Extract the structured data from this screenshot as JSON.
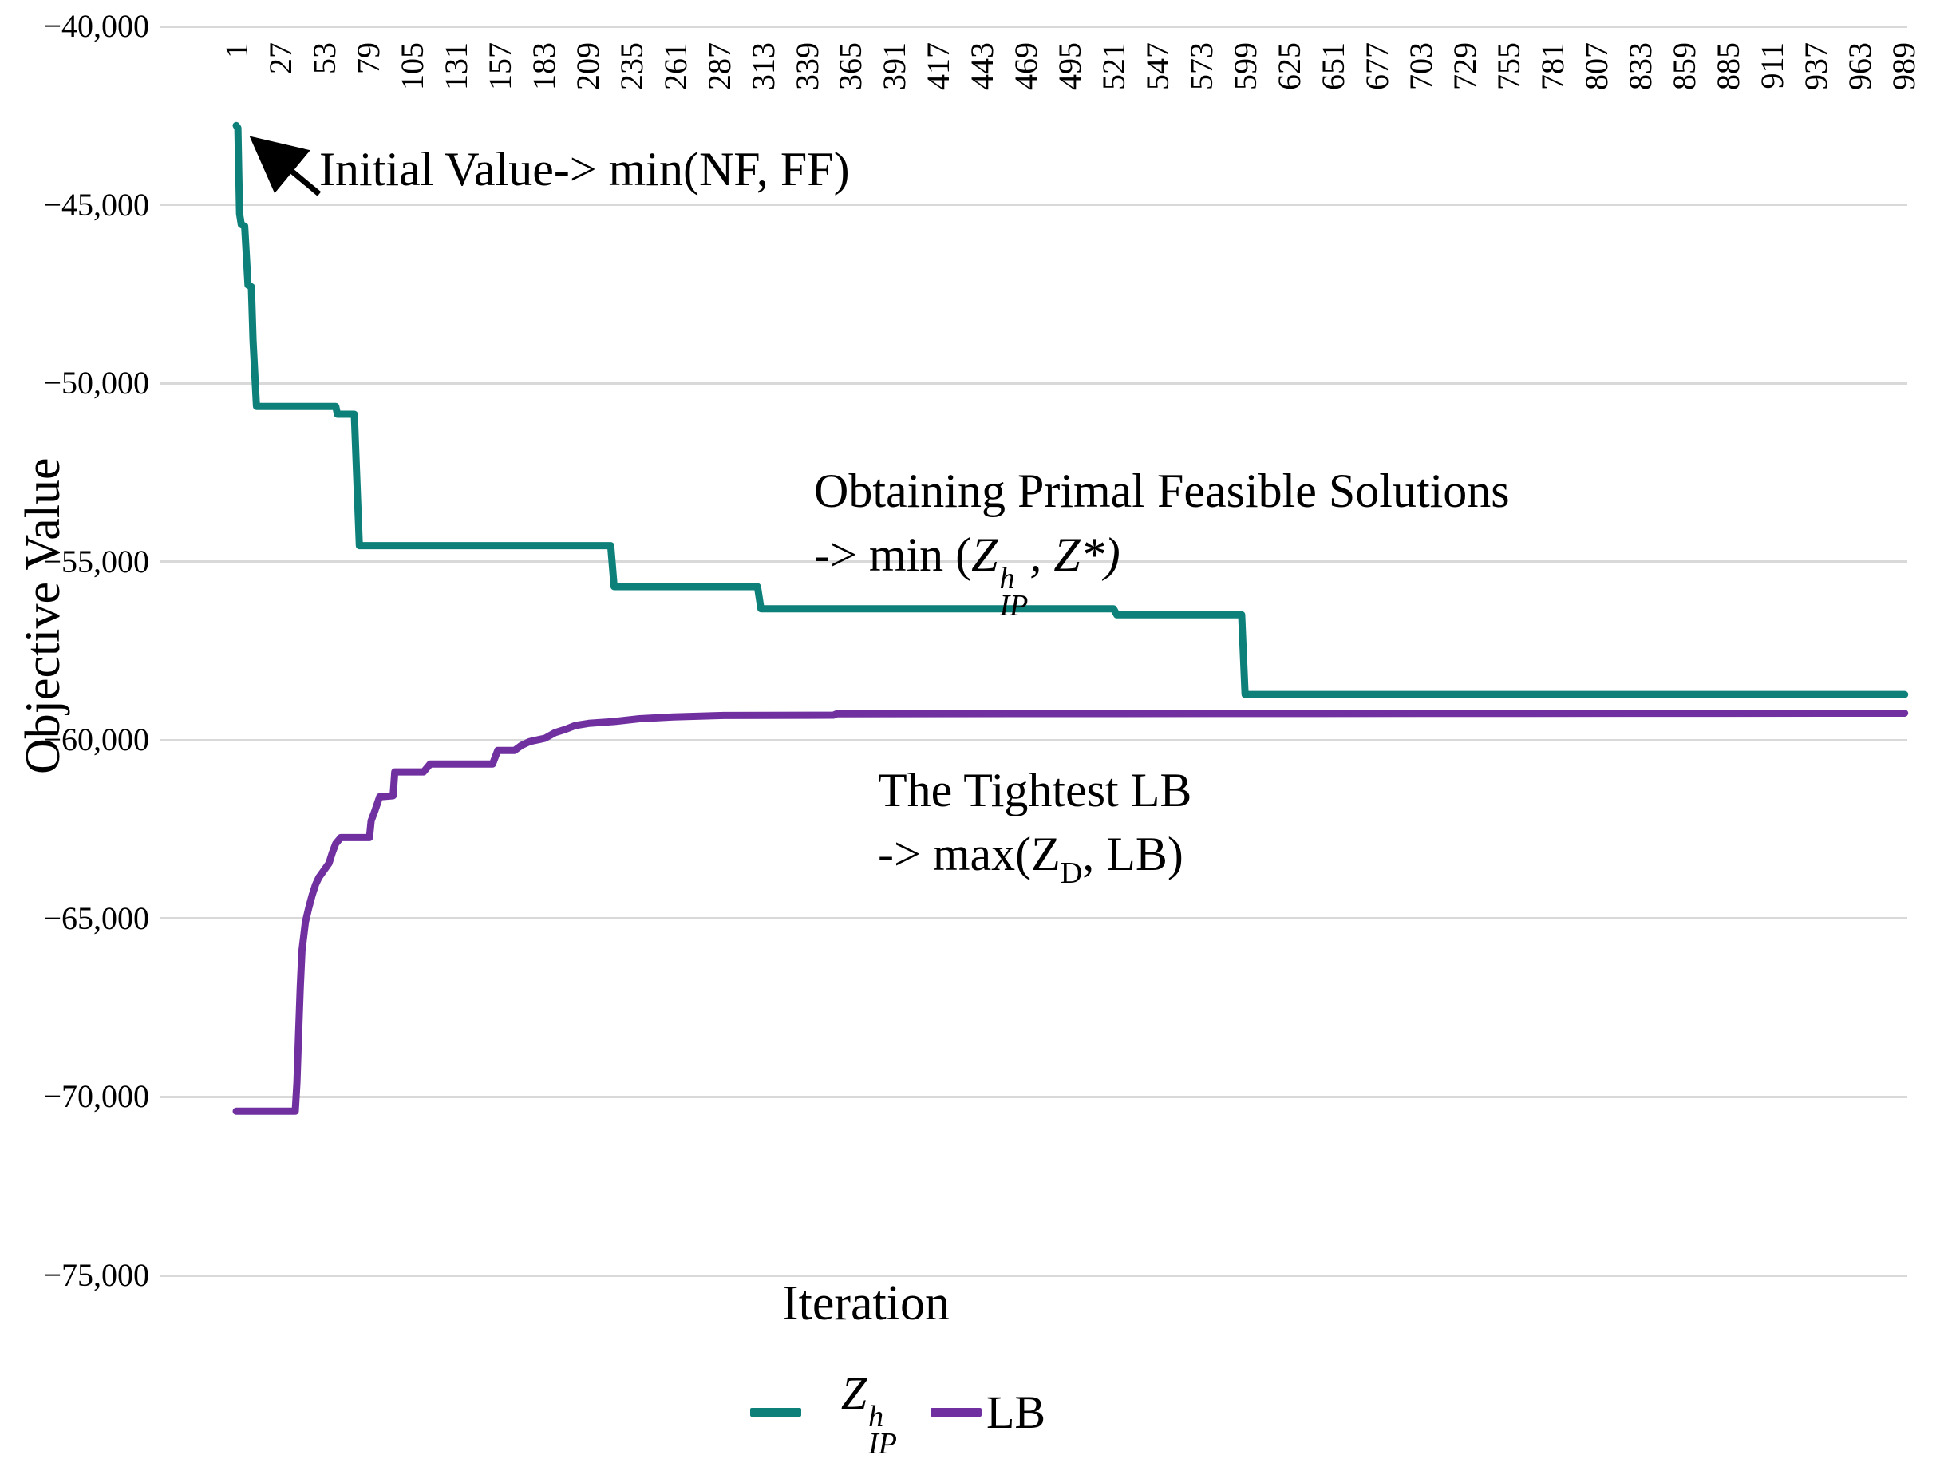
{
  "annotations": {
    "initial_value": "Initial Value-> min(NF, FF)",
    "primal_line1": "Obtaining Primal Feasible Solutions",
    "primal_line2_prefix": "-> min (",
    "primal_z1": "Z",
    "primal_z1_sup": "h",
    "primal_z1_sub": "IP",
    "primal_line2_suffix": ", Z*)",
    "lb_line1": "The Tightest LB",
    "lb_line2_prefix": "-> max(Z",
    "lb_line2_sub": "D",
    "lb_line2_suffix": ", LB)"
  },
  "legend": {
    "series1_z": "Z",
    "series1_sup": "h",
    "series1_sub": "IP",
    "series2_label": "LB"
  },
  "colors": {
    "series1": "#0D807A",
    "series2": "#7030A0",
    "gridline": "#D9D9D9",
    "text": "#000000"
  },
  "chart_data": {
    "type": "line",
    "title": "",
    "xlabel": "Iteration",
    "ylabel": "Objective Value",
    "xlim": [
      1,
      1000
    ],
    "ylim": [
      -75000,
      -40000
    ],
    "grid": "horizontal",
    "legend_position": "bottom",
    "x_ticks": [
      1,
      27,
      53,
      79,
      105,
      131,
      157,
      183,
      209,
      235,
      261,
      287,
      313,
      339,
      365,
      391,
      417,
      443,
      469,
      495,
      521,
      547,
      573,
      599,
      625,
      651,
      677,
      703,
      729,
      755,
      781,
      807,
      833,
      859,
      885,
      911,
      937,
      963,
      989
    ],
    "y_ticks": [
      {
        "value": -40000,
        "label": "−40,000"
      },
      {
        "value": -45000,
        "label": "−45,000"
      },
      {
        "value": -50000,
        "label": "−50,000"
      },
      {
        "value": -55000,
        "label": "−55,000"
      },
      {
        "value": -60000,
        "label": "−60,000"
      },
      {
        "value": -65000,
        "label": "−65,000"
      },
      {
        "value": -70000,
        "label": "−70,000"
      },
      {
        "value": -75000,
        "label": "−75,000"
      }
    ],
    "series": [
      {
        "name": "Z_IP^h",
        "description": "Best primal feasible objective min(Z_IP^h, Z*), starts at min(NF, FF)",
        "points": [
          [
            1,
            -42780
          ],
          [
            2,
            -42850
          ],
          [
            3,
            -45250
          ],
          [
            4,
            -45550
          ],
          [
            6,
            -45600
          ],
          [
            8,
            -47250
          ],
          [
            10,
            -47300
          ],
          [
            11,
            -48800
          ],
          [
            13,
            -50650
          ],
          [
            60,
            -50650
          ],
          [
            61,
            -50870
          ],
          [
            71,
            -50870
          ],
          [
            74,
            -54550
          ],
          [
            223,
            -54550
          ],
          [
            225,
            -55700
          ],
          [
            310,
            -55700
          ],
          [
            312,
            -56320
          ],
          [
            521,
            -56320
          ],
          [
            523,
            -56490
          ],
          [
            597,
            -56490
          ],
          [
            599,
            -58720
          ],
          [
            990,
            -58720
          ]
        ]
      },
      {
        "name": "LB",
        "description": "The tightest lower bound max(Z_D, LB)",
        "points": [
          [
            1,
            -70400
          ],
          [
            36,
            -70400
          ],
          [
            37,
            -69600
          ],
          [
            38,
            -68200
          ],
          [
            39,
            -66900
          ],
          [
            40,
            -65900
          ],
          [
            42,
            -65100
          ],
          [
            44,
            -64700
          ],
          [
            46,
            -64350
          ],
          [
            48,
            -64050
          ],
          [
            50,
            -63850
          ],
          [
            53,
            -63650
          ],
          [
            56,
            -63450
          ],
          [
            58,
            -63150
          ],
          [
            60,
            -62900
          ],
          [
            63,
            -62730
          ],
          [
            80,
            -62730
          ],
          [
            81,
            -62260
          ],
          [
            83,
            -62010
          ],
          [
            86,
            -61590
          ],
          [
            94,
            -61560
          ],
          [
            95,
            -60890
          ],
          [
            112,
            -60890
          ],
          [
            116,
            -60670
          ],
          [
            153,
            -60670
          ],
          [
            156,
            -60290
          ],
          [
            166,
            -60290
          ],
          [
            170,
            -60150
          ],
          [
            175,
            -60040
          ],
          [
            180,
            -59990
          ],
          [
            184,
            -59950
          ],
          [
            190,
            -59790
          ],
          [
            196,
            -59700
          ],
          [
            202,
            -59590
          ],
          [
            210,
            -59530
          ],
          [
            225,
            -59480
          ],
          [
            240,
            -59400
          ],
          [
            260,
            -59350
          ],
          [
            290,
            -59310
          ],
          [
            355,
            -59300
          ],
          [
            357,
            -59260
          ],
          [
            500,
            -59255
          ],
          [
            700,
            -59250
          ],
          [
            990,
            -59245
          ]
        ]
      }
    ]
  }
}
